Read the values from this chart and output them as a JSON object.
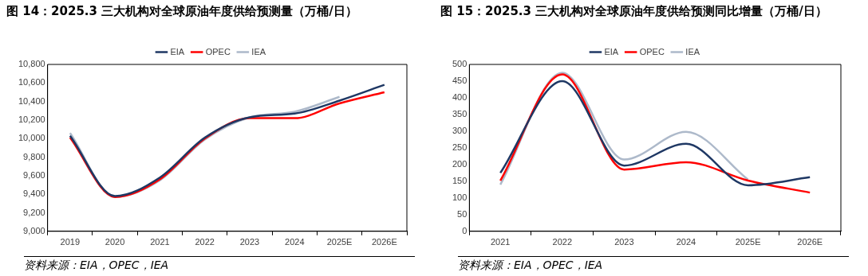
{
  "chart_data": [
    {
      "type": "line",
      "title": "图 14：2025.3 三大机构对全球原油年度供给预测量（万桶/日）",
      "categories": [
        "2019",
        "2020",
        "2021",
        "2022",
        "2023",
        "2024",
        "2025E",
        "2026E"
      ],
      "series": [
        {
          "name": "EIA",
          "color": "#1f3864",
          "values": [
            10030,
            9380,
            9580,
            10010,
            10230,
            10270,
            10410,
            10580
          ]
        },
        {
          "name": "OPEC",
          "color": "#ff0000",
          "values": [
            10010,
            9370,
            9560,
            10000,
            10220,
            10220,
            10380,
            10500
          ]
        },
        {
          "name": "IEA",
          "color": "#adb9ca",
          "values": [
            10060,
            9370,
            9550,
            9990,
            10230,
            10290,
            10450,
            null
          ]
        }
      ],
      "ylim": [
        9000,
        10800
      ],
      "yticks": [
        {
          "value": 9000,
          "label": "9,000"
        },
        {
          "value": 9200,
          "label": "9,200"
        },
        {
          "value": 9400,
          "label": "9,400"
        },
        {
          "value": 9600,
          "label": "9,600"
        },
        {
          "value": 9800,
          "label": "9,800"
        },
        {
          "value": 10000,
          "label": "10,000"
        },
        {
          "value": 10200,
          "label": "10,200"
        },
        {
          "value": 10400,
          "label": "10,400"
        },
        {
          "value": 10600,
          "label": "10,600"
        },
        {
          "value": 10800,
          "label": "10,800"
        }
      ],
      "grid": false,
      "legend": "top",
      "marker": "none",
      "line_style": "solid",
      "annotations": [
        "资料来源：EIA，OPEC，IEA"
      ]
    },
    {
      "type": "line",
      "title": "图 15：2025.3 三大机构对全球原油年度供给预测同比增量（万桶/日）",
      "categories": [
        "2021",
        "2022",
        "2023",
        "2024",
        "2025E",
        "2026E"
      ],
      "series": [
        {
          "name": "EIA",
          "color": "#1f3864",
          "values": [
            175,
            450,
            197,
            262,
            138,
            162
          ]
        },
        {
          "name": "OPEC",
          "color": "#ff0000",
          "values": [
            152,
            470,
            185,
            207,
            152,
            116
          ]
        },
        {
          "name": "IEA",
          "color": "#adb9ca",
          "values": [
            140,
            475,
            215,
            298,
            155,
            null
          ]
        }
      ],
      "ylim": [
        0,
        500
      ],
      "yticks": [
        0,
        50,
        100,
        150,
        200,
        250,
        300,
        350,
        400,
        450,
        500
      ],
      "grid": false,
      "legend": "top",
      "marker": "none",
      "line_style": "solid",
      "annotations": [
        "资料来源：EIA，OPEC，IEA"
      ]
    }
  ]
}
